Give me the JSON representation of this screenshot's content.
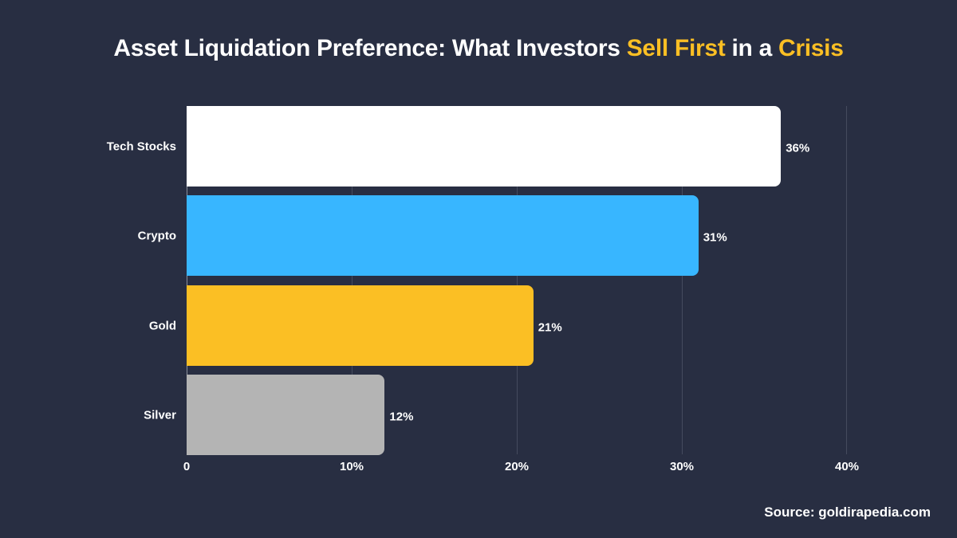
{
  "header": {
    "title_part1": "Asset Liquidation Preference: What Investors ",
    "title_highlight1": "Sell First",
    "title_part2": " in a ",
    "title_highlight2": "Crisis"
  },
  "footer": {
    "source": "Source: goldirapedia.com"
  },
  "colors": {
    "background": "#282e42",
    "highlight": "#fbbf24",
    "tech_stocks": "#ffffff",
    "crypto": "#38b6ff",
    "gold": "#fbbf24",
    "silver": "#b4b4b4",
    "gridline": "#454b5e"
  },
  "chart_data": {
    "type": "bar",
    "orientation": "horizontal",
    "title": "Asset Liquidation Preference: What Investors Sell First in a Crisis",
    "xlabel": "",
    "ylabel": "",
    "categories": [
      "Tech Stocks",
      "Crypto",
      "Gold",
      "Silver"
    ],
    "values": [
      36,
      31,
      21,
      12
    ],
    "value_labels": [
      "36%",
      "31%",
      "21%",
      "12%"
    ],
    "bar_colors": [
      "#ffffff",
      "#38b6ff",
      "#fbbf24",
      "#b4b4b4"
    ],
    "xlim": [
      0,
      40
    ],
    "x_ticks": [
      0,
      10,
      20,
      30,
      40
    ],
    "x_tick_labels": [
      "0",
      "10%",
      "20%",
      "30%",
      "40%"
    ],
    "grid": "vertical",
    "legend": "none",
    "annotation": "Source: goldirapedia.com"
  }
}
